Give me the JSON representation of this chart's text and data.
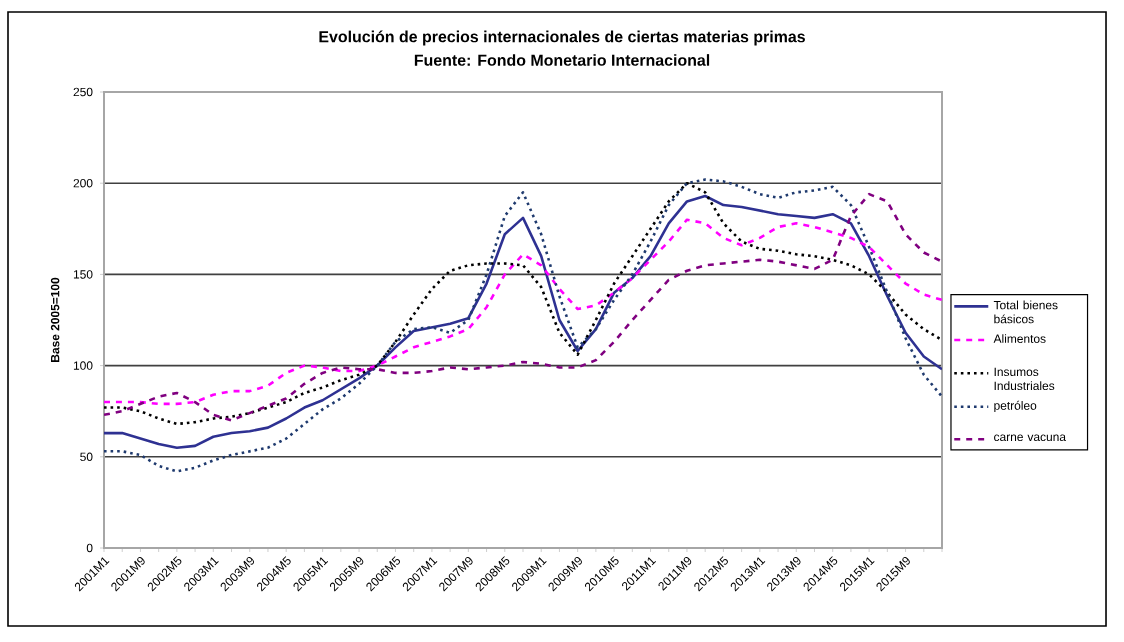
{
  "chart_data": {
    "type": "line",
    "title": "Evolución de precios internacionales de ciertas materias primas",
    "subtitle": "Fuente: Fondo Monetario Internacional",
    "ylabel": "Base 2005=100",
    "categories": [
      "2001M1",
      null,
      "2001M9",
      null,
      "2002M5",
      null,
      "2003M1",
      null,
      "2003M9",
      null,
      "2004M5",
      null,
      "2005M1",
      null,
      "2005M9",
      null,
      "2006M5",
      null,
      "2007M1",
      null,
      "2007M9",
      null,
      "2008M5",
      null,
      "2009M1",
      null,
      "2009M9",
      null,
      "2010M5",
      null,
      "2011M1",
      null,
      "2011M9",
      null,
      "2012M5",
      null,
      "2013M1",
      null,
      "2013M9",
      null,
      "2014M5",
      null,
      "2015M1",
      null,
      "2015M9",
      null,
      null
    ],
    "ylim": [
      0,
      250
    ],
    "yticks": [
      0,
      50,
      100,
      150,
      200,
      250
    ],
    "grid": "y",
    "legend": "right",
    "marker": "none",
    "series": [
      {
        "name": "Total bienes básicos",
        "color": "#2e3192",
        "line_style": "solid",
        "values": [
          63,
          63,
          60,
          57,
          55,
          56,
          61,
          63,
          64,
          66,
          71,
          77,
          81,
          87,
          93,
          100,
          110,
          119,
          121,
          123,
          126,
          145,
          172,
          181,
          160,
          125,
          108,
          120,
          140,
          148,
          160,
          178,
          190,
          193,
          188,
          187,
          185,
          183,
          182,
          181,
          183,
          178,
          160,
          138,
          118,
          105,
          98
        ]
      },
      {
        "name": "Alimentos",
        "color": "#ff00ff",
        "line_style": "dashed",
        "values": [
          80,
          80,
          80,
          79,
          79,
          80,
          84,
          86,
          86,
          89,
          96,
          100,
          99,
          97,
          97,
          100,
          105,
          110,
          113,
          116,
          120,
          132,
          150,
          161,
          155,
          142,
          131,
          133,
          140,
          148,
          158,
          168,
          180,
          178,
          170,
          166,
          170,
          176,
          178,
          176,
          173,
          170,
          165,
          155,
          145,
          139,
          136
        ]
      },
      {
        "name": "Insumos Industriales",
        "color": "#000000",
        "line_style": "dotted",
        "values": [
          77,
          77,
          75,
          71,
          68,
          69,
          71,
          72,
          74,
          77,
          80,
          85,
          88,
          92,
          95,
          100,
          113,
          128,
          142,
          152,
          155,
          156,
          156,
          155,
          143,
          118,
          106,
          125,
          145,
          160,
          175,
          190,
          200,
          195,
          178,
          168,
          164,
          163,
          161,
          160,
          158,
          155,
          150,
          140,
          128,
          120,
          114
        ]
      },
      {
        "name": "petróleo",
        "color": "#1f3a6e",
        "line_style": "dotted",
        "values": [
          53,
          53,
          51,
          45,
          42,
          44,
          48,
          51,
          53,
          55,
          60,
          68,
          76,
          82,
          90,
          100,
          113,
          120,
          121,
          118,
          125,
          150,
          182,
          195,
          172,
          138,
          110,
          120,
          136,
          150,
          168,
          188,
          200,
          202,
          201,
          198,
          194,
          192,
          195,
          196,
          198,
          188,
          165,
          140,
          115,
          95,
          83
        ]
      },
      {
        "name": "carne vacuna",
        "color": "#800080",
        "line_style": "dashed",
        "values": [
          73,
          75,
          79,
          83,
          85,
          80,
          73,
          70,
          74,
          78,
          82,
          90,
          96,
          99,
          98,
          98,
          96,
          96,
          97,
          99,
          98,
          99,
          100,
          102,
          101,
          99,
          99,
          103,
          113,
          125,
          136,
          147,
          152,
          155,
          156,
          157,
          158,
          157,
          155,
          153,
          158,
          182,
          194,
          190,
          172,
          162,
          157
        ]
      }
    ]
  }
}
